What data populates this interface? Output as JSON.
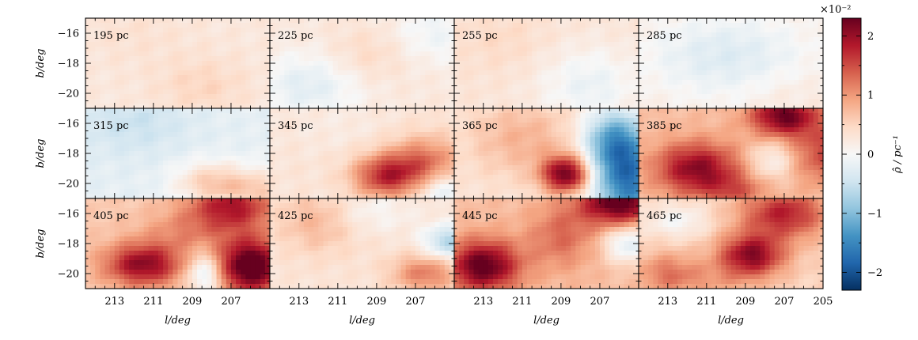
{
  "chart_data": {
    "type": "heatmap",
    "title": "",
    "layout_rows": 3,
    "layout_cols": 4,
    "xlabel": "l/deg",
    "ylabel": "b/deg",
    "xlim": [
      214.5,
      205
    ],
    "ylim": [
      -21,
      -15
    ],
    "x_ticks": [
      213,
      211,
      209,
      207
    ],
    "x_tick_labels": [
      "213",
      "211",
      "209",
      "207"
    ],
    "x_edge_label": "205",
    "y_ticks": [
      -16,
      -18,
      -20
    ],
    "y_tick_labels": [
      "−16",
      "−18",
      "−20"
    ],
    "colorbar": {
      "label": "ρ̂ / pc⁻¹",
      "exponent_label": "×10⁻²",
      "min": -2.3,
      "max": 2.3,
      "ticks": [
        2,
        1,
        0,
        -1,
        -2
      ],
      "tick_labels": [
        "2",
        "1",
        "0",
        "−1",
        "−2"
      ],
      "colormap": "RdBu_r",
      "colors": [
        "#053061",
        "#2166ac",
        "#4393c3",
        "#92c5de",
        "#d1e5f0",
        "#f7f7f7",
        "#fddbc7",
        "#f4a582",
        "#d6604d",
        "#b2182b",
        "#67001f"
      ]
    },
    "panels": [
      {
        "label": "195 pc",
        "base": 0.25,
        "blobs": [
          [
            208.5,
            -19.5,
            1.6,
            1.3,
            0.25
          ],
          [
            212,
            -16,
            2,
            1.5,
            0.1
          ]
        ]
      },
      {
        "label": "225 pc",
        "base": 0.25,
        "blobs": [
          [
            212.5,
            -19.5,
            2,
            1.6,
            -0.5
          ],
          [
            206,
            -16,
            1.6,
            1.5,
            -0.35
          ],
          [
            209.5,
            -17.5,
            1.5,
            1.3,
            0.25
          ]
        ]
      },
      {
        "label": "255 pc",
        "base": 0.3,
        "blobs": [
          [
            207.5,
            -19.5,
            1.8,
            1.8,
            -0.45
          ],
          [
            212,
            -16.5,
            1.6,
            1.4,
            0.15
          ]
        ]
      },
      {
        "label": "285 pc",
        "base": 0.2,
        "blobs": [
          [
            210,
            -17.5,
            3,
            2,
            -0.5
          ],
          [
            207,
            -20,
            1.5,
            1.2,
            0.1
          ]
        ]
      },
      {
        "label": "315 pc",
        "base": -0.2,
        "blobs": [
          [
            208,
            -20,
            1.3,
            1,
            0.8
          ],
          [
            205.5,
            -20.5,
            1.2,
            1,
            0.7
          ],
          [
            212,
            -16,
            2,
            1.5,
            -0.3
          ]
        ]
      },
      {
        "label": "345 pc",
        "base": 0.3,
        "blobs": [
          [
            208.5,
            -19.5,
            1.2,
            1,
            1.4
          ],
          [
            206.5,
            -18.5,
            1.3,
            1.2,
            0.9
          ],
          [
            211,
            -16,
            2,
            1.4,
            -0.1
          ],
          [
            205.5,
            -20.5,
            1,
            0.8,
            -0.6
          ]
        ]
      },
      {
        "label": "365 pc",
        "base": 0.3,
        "blobs": [
          [
            208.7,
            -19.4,
            0.9,
            0.9,
            2.0
          ],
          [
            211,
            -17,
            2,
            1.8,
            0.5
          ],
          [
            205.5,
            -19.5,
            1.4,
            2.4,
            -2.0
          ],
          [
            206.5,
            -17,
            1,
            1.4,
            -0.9
          ]
        ]
      },
      {
        "label": "385 pc",
        "base": 0.7,
        "blobs": [
          [
            211.5,
            -19,
            1.5,
            1.2,
            1.4
          ],
          [
            207,
            -15.5,
            1.2,
            1,
            1.6
          ],
          [
            209.5,
            -20.5,
            1.2,
            0.8,
            0.6
          ],
          [
            207.7,
            -18.5,
            0.8,
            1,
            -0.6
          ],
          [
            205,
            -18,
            1,
            1.4,
            0.8
          ]
        ]
      },
      {
        "label": "405 pc",
        "base": 0.6,
        "blobs": [
          [
            211.5,
            -19.4,
            1.4,
            1,
            1.5
          ],
          [
            206,
            -19.5,
            1.3,
            1.3,
            2.0
          ],
          [
            208.3,
            -20,
            0.7,
            1,
            -1.1
          ],
          [
            207,
            -15.5,
            1.5,
            1.2,
            1.3
          ],
          [
            209.5,
            -17.2,
            1.5,
            1,
            0.4
          ]
        ]
      },
      {
        "label": "425 pc",
        "base": 0.3,
        "blobs": [
          [
            205.3,
            -17.9,
            0.9,
            0.8,
            -1.0
          ],
          [
            206.5,
            -20,
            1.2,
            0.9,
            0.9
          ],
          [
            212,
            -16.5,
            1.5,
            1.5,
            0.5
          ],
          [
            209.5,
            -16,
            1.6,
            1,
            -0.3
          ]
        ]
      },
      {
        "label": "445 pc",
        "base": 0.7,
        "blobs": [
          [
            213,
            -19.5,
            1.3,
            1.2,
            1.7
          ],
          [
            206,
            -15.2,
            1.4,
            1.1,
            1.8
          ],
          [
            205.5,
            -18,
            0.9,
            0.9,
            -1.0
          ],
          [
            209,
            -17.5,
            1.2,
            1.5,
            0.6
          ]
        ]
      },
      {
        "label": "465 pc",
        "base": 0.5,
        "blobs": [
          [
            208.7,
            -18.8,
            1.2,
            1,
            1.6
          ],
          [
            207,
            -16,
            1.6,
            1.2,
            1.3
          ],
          [
            212.5,
            -16.5,
            1.2,
            0.8,
            -0.5
          ],
          [
            213,
            -20,
            1.2,
            1,
            0.7
          ],
          [
            210.5,
            -20.5,
            1.5,
            0.8,
            0.3
          ]
        ]
      }
    ]
  }
}
